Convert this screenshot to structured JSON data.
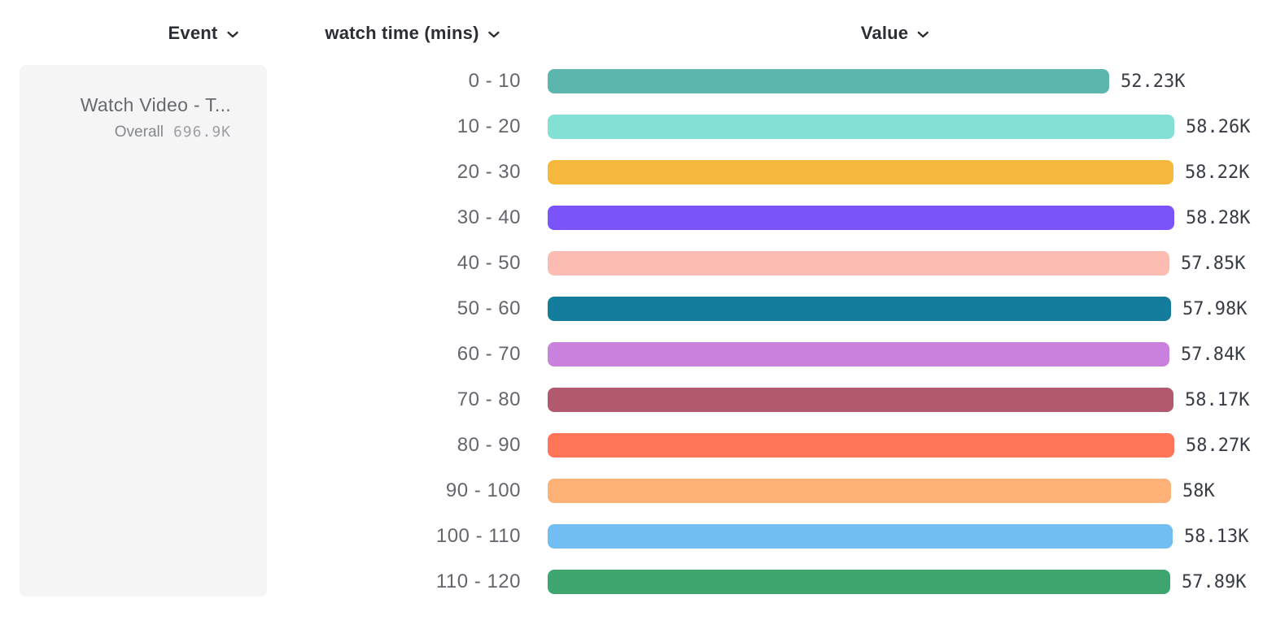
{
  "header": {
    "columns": [
      {
        "label": "Event",
        "icon": "chevron-down-icon"
      },
      {
        "label": "watch time (mins)",
        "icon": "chevron-down-icon"
      },
      {
        "label": "Value",
        "icon": "chevron-down-icon"
      }
    ]
  },
  "event_card": {
    "title": "Watch Video - T...",
    "overall_label": "Overall",
    "overall_value": "696.9K"
  },
  "chart_data": {
    "type": "bar",
    "orientation": "horizontal",
    "title": "",
    "xlabel": "Value",
    "ylabel": "watch time (mins)",
    "xlim": [
      0,
      58280
    ],
    "grid": false,
    "legend": false,
    "categories": [
      "0 - 10",
      "10 - 20",
      "20 - 30",
      "30 - 40",
      "40 - 50",
      "50 - 60",
      "60 - 70",
      "70 - 80",
      "80 - 90",
      "90 - 100",
      "100 - 110",
      "110 - 120"
    ],
    "values": [
      52230,
      58260,
      58220,
      58280,
      57850,
      57980,
      57840,
      58170,
      58270,
      58000,
      58130,
      57890
    ],
    "value_labels": [
      "52.23K",
      "58.26K",
      "58.22K",
      "58.28K",
      "57.85K",
      "57.98K",
      "57.84K",
      "58.17K",
      "58.27K",
      "58K",
      "58.13K",
      "57.89K"
    ],
    "colors": [
      "#5cb6ae",
      "#82e0d4",
      "#f6b93d",
      "#7a53f9",
      "#fcbcb2",
      "#147d9d",
      "#ca81dd",
      "#b25a6d",
      "#fe7557",
      "#feb277",
      "#72bdf2",
      "#3ea56f"
    ]
  },
  "layout_colors": {
    "header_text": "#2b2e34",
    "category_text": "#63666c",
    "value_text": "#383c44",
    "card_background": "#f5f5f6"
  }
}
